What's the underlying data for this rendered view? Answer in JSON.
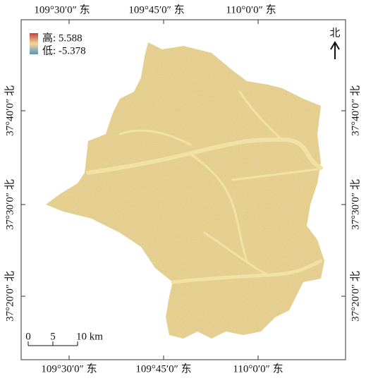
{
  "map": {
    "top_labels": [
      "109°30′0″ 东",
      "109°45′0″ 东",
      "110°0′0″ 东"
    ],
    "bottom_labels": [
      "109°30′0″ 东",
      "109°45′0″ 东",
      "110°0′0″ 东"
    ],
    "left_labels": [
      "37°40′0″ 北",
      "37°30′0″ 北",
      "37°20′0″ 北"
    ],
    "right_labels": [
      "37°40′0″ 北",
      "37°30′0″ 北",
      "37°20′0″ 北"
    ],
    "legend": {
      "high": "高: 5.588",
      "low": "低: -5.378"
    },
    "north": "北",
    "scale": [
      "0",
      "5",
      "10 km"
    ]
  }
}
